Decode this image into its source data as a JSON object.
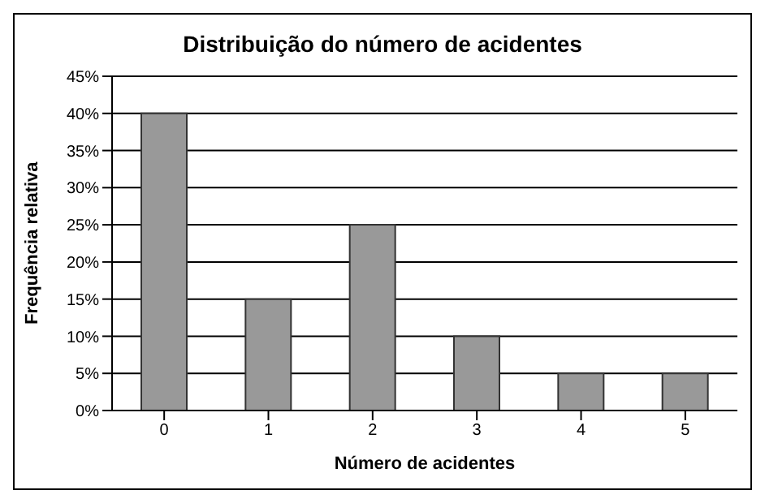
{
  "chart_data": {
    "type": "bar",
    "title": "Distribuição do número de acidentes",
    "xlabel": "Número de acidentes",
    "ylabel": "Frequência relativa",
    "categories": [
      "0",
      "1",
      "2",
      "3",
      "4",
      "5"
    ],
    "values": [
      40,
      15,
      25,
      10,
      5,
      5
    ],
    "color": "#999999",
    "ylim": [
      0,
      45
    ],
    "yticks": [
      {
        "value": 0,
        "label": "0%"
      },
      {
        "value": 5,
        "label": "5%"
      },
      {
        "value": 10,
        "label": "10%"
      },
      {
        "value": 15,
        "label": "15%"
      },
      {
        "value": 20,
        "label": "20%"
      },
      {
        "value": 25,
        "label": "25%"
      },
      {
        "value": 30,
        "label": "30%"
      },
      {
        "value": 35,
        "label": "35%"
      },
      {
        "value": 40,
        "label": "40%"
      },
      {
        "value": 45,
        "label": "45%"
      }
    ],
    "grid": "y",
    "legend": false
  }
}
